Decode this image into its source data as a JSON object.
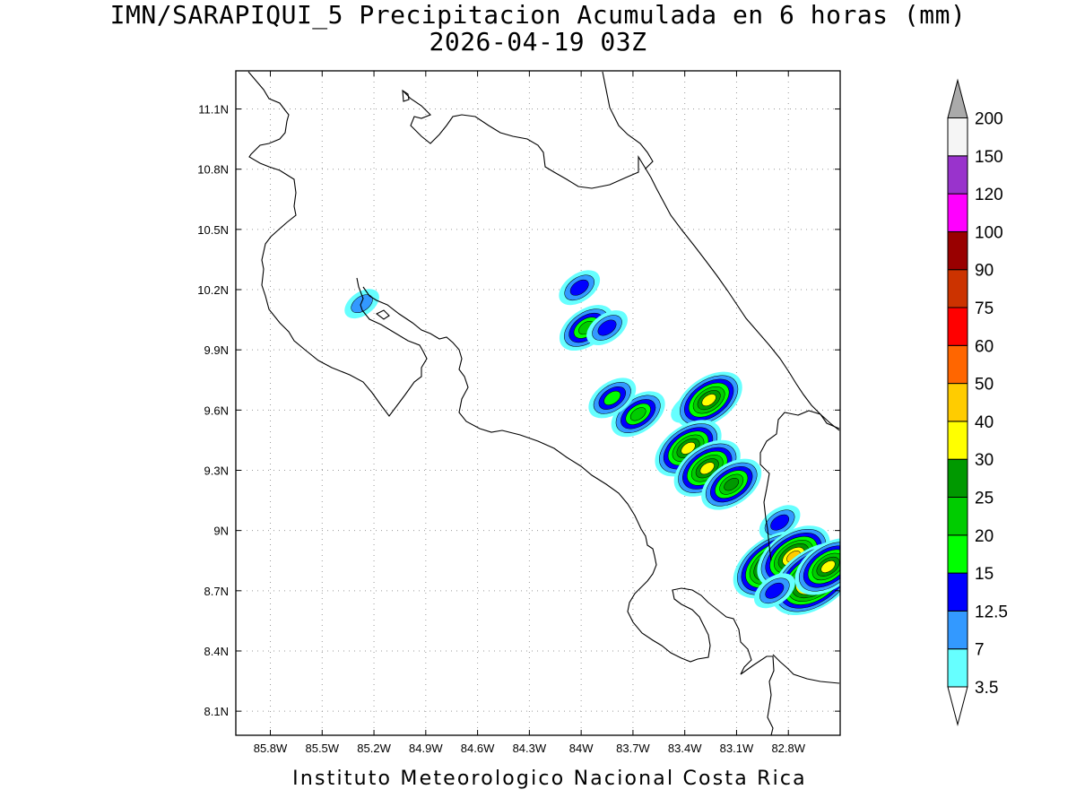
{
  "header": {
    "title_line1": "IMN/SARAPIQUI_5 Precipitacion Acumulada en 6 horas (mm)",
    "title_line2": "2026-04-19 03Z"
  },
  "footer": {
    "credit": "Instituto Meteorologico Nacional Costa Rica"
  },
  "map": {
    "lon_range": [
      -86.0,
      -82.5
    ],
    "lat_range": [
      7.98,
      11.29
    ],
    "lon_ticks": [
      {
        "value": -85.8,
        "label": "85.8W"
      },
      {
        "value": -85.5,
        "label": "85.5W"
      },
      {
        "value": -85.2,
        "label": "85.2W"
      },
      {
        "value": -84.9,
        "label": "84.9W"
      },
      {
        "value": -84.6,
        "label": "84.6W"
      },
      {
        "value": -84.3,
        "label": "84.3W"
      },
      {
        "value": -84.0,
        "label": "84W"
      },
      {
        "value": -83.7,
        "label": "83.7W"
      },
      {
        "value": -83.4,
        "label": "83.4W"
      },
      {
        "value": -83.1,
        "label": "83.1W"
      },
      {
        "value": -82.8,
        "label": "82.8W"
      }
    ],
    "lat_ticks": [
      {
        "value": 11.1,
        "label": "11.1N"
      },
      {
        "value": 10.8,
        "label": "10.8N"
      },
      {
        "value": 10.5,
        "label": "10.5N"
      },
      {
        "value": 10.2,
        "label": "10.2N"
      },
      {
        "value": 9.9,
        "label": "9.9N"
      },
      {
        "value": 9.6,
        "label": "9.6N"
      },
      {
        "value": 9.3,
        "label": "9.3N"
      },
      {
        "value": 9.0,
        "label": "9N"
      },
      {
        "value": 8.7,
        "label": "8.7N"
      },
      {
        "value": 8.4,
        "label": "8.4N"
      },
      {
        "value": 8.1,
        "label": "8.1N"
      }
    ],
    "grid": true,
    "coastline_color": "#000000",
    "precip_cells": [
      {
        "lon": -85.27,
        "lat": 10.13,
        "level": 7
      },
      {
        "lon": -84.01,
        "lat": 10.21,
        "level": 12.5
      },
      {
        "lon": -83.97,
        "lat": 10.01,
        "level": 20
      },
      {
        "lon": -83.85,
        "lat": 10.01,
        "level": 12.5
      },
      {
        "lon": -83.67,
        "lat": 9.58,
        "level": 20
      },
      {
        "lon": -83.82,
        "lat": 9.66,
        "level": 15
      },
      {
        "lon": -83.38,
        "lat": 9.61,
        "level": 7
      },
      {
        "lon": -83.26,
        "lat": 9.65,
        "level": 30
      },
      {
        "lon": -83.38,
        "lat": 9.41,
        "level": 30
      },
      {
        "lon": -83.27,
        "lat": 9.31,
        "level": 30
      },
      {
        "lon": -83.13,
        "lat": 9.23,
        "level": 25
      },
      {
        "lon": -82.85,
        "lat": 9.04,
        "level": 12.5
      },
      {
        "lon": -82.89,
        "lat": 8.83,
        "level": 50
      },
      {
        "lon": -82.77,
        "lat": 8.87,
        "level": 40
      },
      {
        "lon": -82.65,
        "lat": 8.76,
        "level": 60
      },
      {
        "lon": -82.57,
        "lat": 8.82,
        "level": 30
      },
      {
        "lon": -82.88,
        "lat": 8.7,
        "level": 12.5
      }
    ]
  },
  "colorbar": {
    "levels": [
      {
        "label": "3.5",
        "color": "#66ffff"
      },
      {
        "label": "7",
        "color": "#3399ff"
      },
      {
        "label": "12.5",
        "color": "#0000ff"
      },
      {
        "label": "15",
        "color": "#00ff00"
      },
      {
        "label": "20",
        "color": "#00cc00"
      },
      {
        "label": "25",
        "color": "#009900"
      },
      {
        "label": "30",
        "color": "#ffff00"
      },
      {
        "label": "40",
        "color": "#ffcc00"
      },
      {
        "label": "50",
        "color": "#ff6600"
      },
      {
        "label": "60",
        "color": "#ff0000"
      },
      {
        "label": "75",
        "color": "#cc3300"
      },
      {
        "label": "90",
        "color": "#990000"
      },
      {
        "label": "100",
        "color": "#ff00ff"
      },
      {
        "label": "120",
        "color": "#9933cc"
      },
      {
        "label": "150",
        "color": "#f5f5f5"
      },
      {
        "label": "200",
        "color": "#aaaaaa"
      }
    ],
    "below_color": "#ffffff",
    "above_color": "#aaaaaa"
  }
}
